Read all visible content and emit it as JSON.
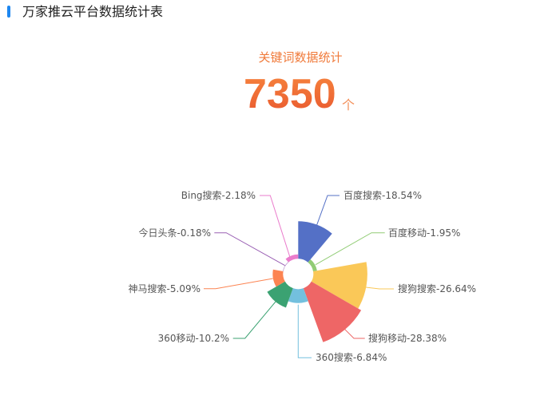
{
  "header": {
    "title": "万家推云平台数据统计表"
  },
  "summary": {
    "label": "关键词数据统计",
    "value": "7350",
    "unit": "个"
  },
  "chart_data": {
    "type": "pie",
    "variant": "nightingale-rose",
    "categories": [
      "百度搜索",
      "百度移动",
      "搜狗搜索",
      "搜狗移动",
      "360搜索",
      "360移动",
      "神马搜索",
      "今日头条",
      "Bing搜索"
    ],
    "values": [
      18.54,
      1.95,
      26.64,
      28.38,
      6.84,
      10.2,
      5.09,
      0.18,
      2.18
    ],
    "labels": [
      "百度搜索-18.54%",
      "百度移动-1.95%",
      "搜狗搜索-26.64%",
      "搜狗移动-28.38%",
      "360搜索-6.84%",
      "360移动-10.2%",
      "神马搜索-5.09%",
      "今日头条-0.18%",
      "Bing搜索-2.18%"
    ],
    "colors": [
      "#5470c6",
      "#91cc75",
      "#fac858",
      "#ee6666",
      "#73c0de",
      "#3ba272",
      "#fc8452",
      "#9a60b4",
      "#ea7ccc"
    ],
    "unit": "%",
    "legend": "none"
  }
}
